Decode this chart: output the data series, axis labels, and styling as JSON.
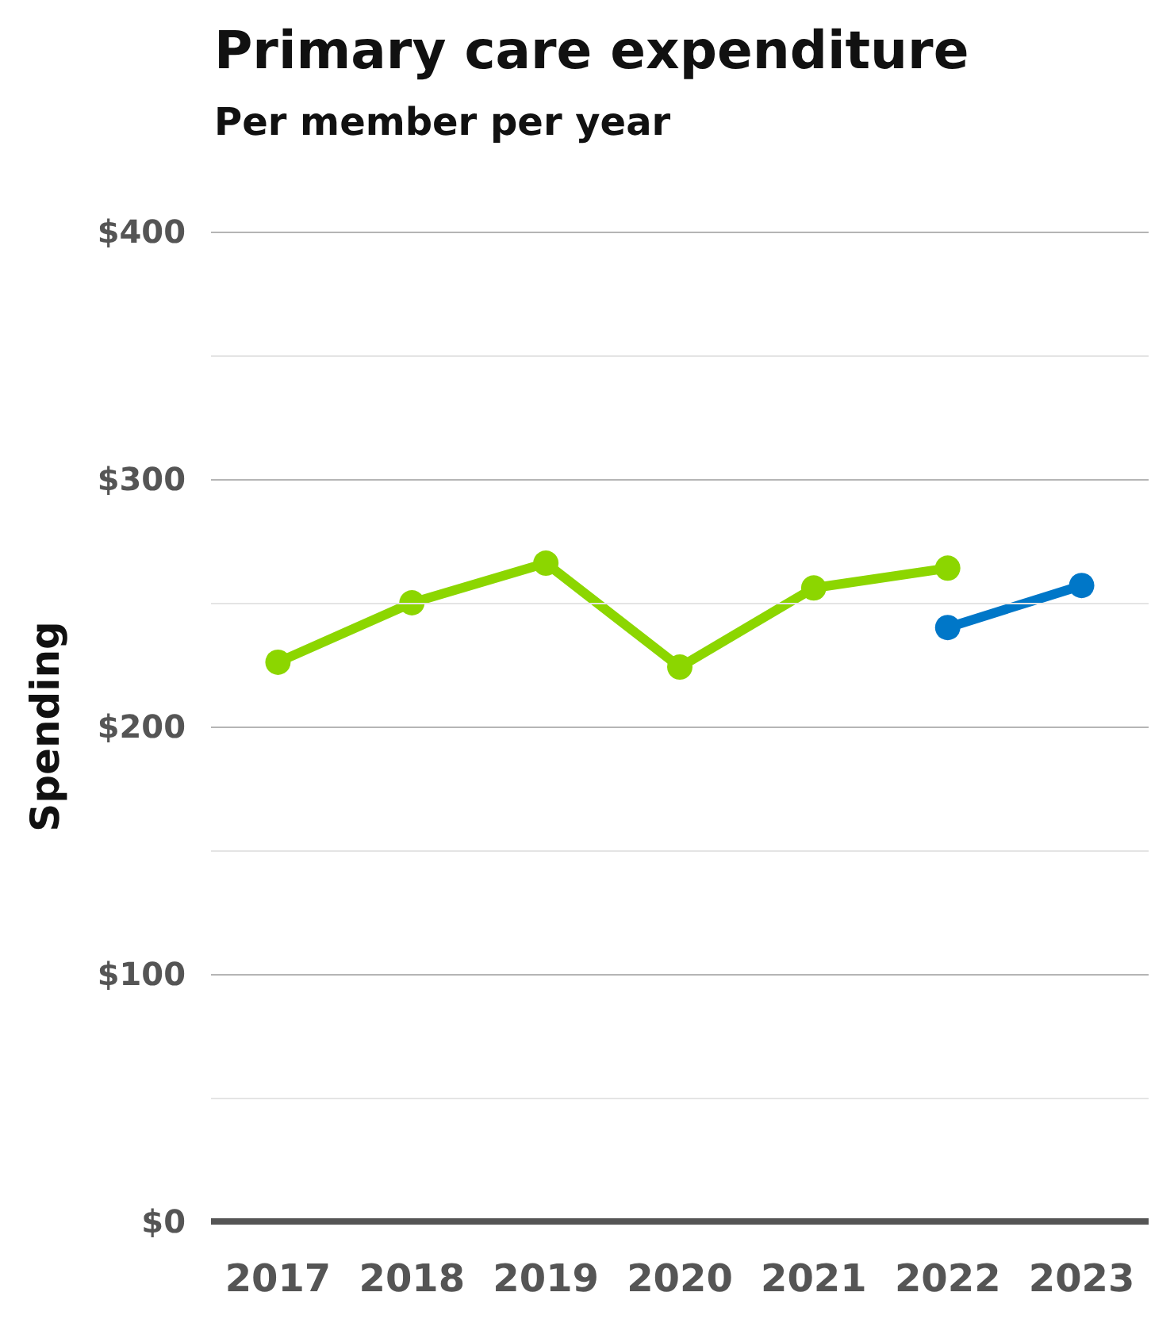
{
  "chart_data": {
    "type": "line",
    "title": "Primary care expenditure",
    "subtitle": "Per member per year",
    "ylabel": "Spending",
    "categories": [
      "2017",
      "2018",
      "2019",
      "2020",
      "2021",
      "2022",
      "2023"
    ],
    "series": [
      {
        "color": "#8cd600",
        "values": [
          226,
          250,
          266,
          224,
          256,
          264,
          null
        ]
      },
      {
        "color": "#0077c8",
        "values": [
          null,
          null,
          null,
          null,
          null,
          240,
          257
        ]
      }
    ],
    "ylim": [
      0,
      400
    ],
    "yticks": [
      {
        "value": 0,
        "label": "$0"
      },
      {
        "value": 50,
        "label": null
      },
      {
        "value": 100,
        "label": "$100"
      },
      {
        "value": 150,
        "label": null
      },
      {
        "value": 200,
        "label": "$200"
      },
      {
        "value": 250,
        "label": null
      },
      {
        "value": 300,
        "label": "$300"
      },
      {
        "value": 350,
        "label": null
      },
      {
        "value": 400,
        "label": "$400"
      }
    ],
    "grid": "y",
    "marker": "circle",
    "line_style": "solid"
  }
}
